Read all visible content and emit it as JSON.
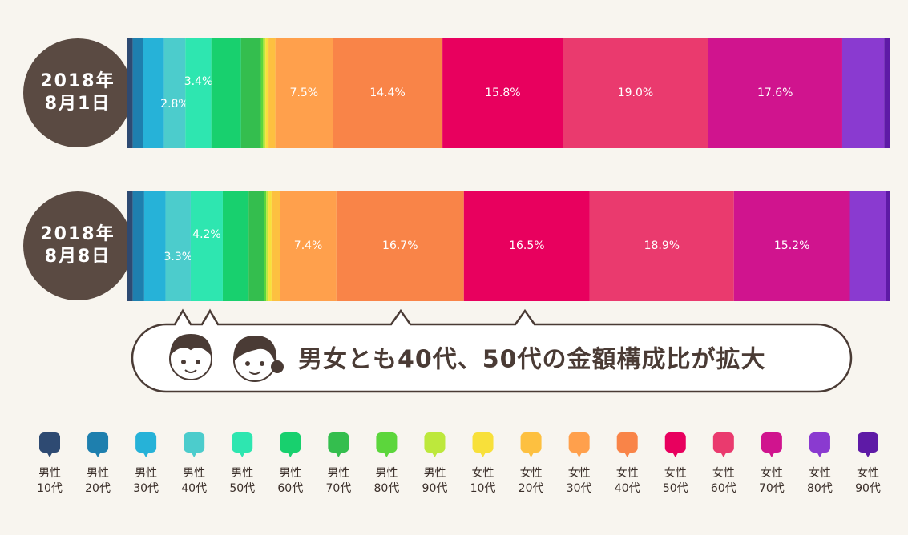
{
  "chart_data": {
    "type": "stacked_barh",
    "categories": [
      [
        "2018年",
        "8月1日"
      ],
      [
        "2018年",
        "8月8日"
      ]
    ],
    "xlim": [
      0,
      100
    ],
    "annotation": "男女とも40代、50代の金額構成比が拡大",
    "series": [
      {
        "name": [
          "男性",
          "10代"
        ],
        "color": "#2e4a72",
        "values": [
          0.8,
          0.8
        ]
      },
      {
        "name": [
          "男性",
          "20代"
        ],
        "color": "#1e7fae",
        "values": [
          1.4,
          1.5
        ]
      },
      {
        "name": [
          "男性",
          "30代"
        ],
        "color": "#26b2d8",
        "values": [
          2.7,
          2.8
        ]
      },
      {
        "name": [
          "男性",
          "40代"
        ],
        "color": "#4ccccc",
        "values": [
          2.8,
          3.3
        ],
        "value_labels": [
          "2.8%",
          "3.3%"
        ]
      },
      {
        "name": [
          "男性",
          "50代"
        ],
        "color": "#2ee6b0",
        "values": [
          3.4,
          4.2
        ],
        "value_labels": [
          "3.4%",
          "4.2%"
        ]
      },
      {
        "name": [
          "男性",
          "60代"
        ],
        "color": "#18d06e",
        "values": [
          3.9,
          3.4
        ]
      },
      {
        "name": [
          "男性",
          "70代"
        ],
        "color": "#34be4e",
        "values": [
          2.6,
          2.0
        ]
      },
      {
        "name": [
          "男性",
          "80代"
        ],
        "color": "#5cd63c",
        "values": [
          0.3,
          0.3
        ]
      },
      {
        "name": [
          "男性",
          "90代"
        ],
        "color": "#bde83c",
        "values": [
          0.3,
          0.3
        ]
      },
      {
        "name": [
          "女性",
          "10代"
        ],
        "color": "#f8e03a",
        "values": [
          0.4,
          0.4
        ]
      },
      {
        "name": [
          "女性",
          "20代"
        ],
        "color": "#fdc040",
        "values": [
          0.9,
          1.1
        ]
      },
      {
        "name": [
          "女性",
          "30代"
        ],
        "color": "#ffa04c",
        "values": [
          7.5,
          7.4
        ],
        "value_labels": [
          "7.5%",
          "7.4%"
        ]
      },
      {
        "name": [
          "女性",
          "40代"
        ],
        "color": "#f98448",
        "values": [
          14.4,
          16.7
        ],
        "value_labels": [
          "14.4%",
          "16.7%"
        ]
      },
      {
        "name": [
          "女性",
          "50代"
        ],
        "color": "#e8005e",
        "values": [
          15.8,
          16.5
        ],
        "value_labels": [
          "15.8%",
          "16.5%"
        ]
      },
      {
        "name": [
          "女性",
          "60代"
        ],
        "color": "#ea3a6e",
        "values": [
          19.0,
          18.9
        ],
        "value_labels": [
          "19.0%",
          "18.9%"
        ]
      },
      {
        "name": [
          "女性",
          "70代"
        ],
        "color": "#d0148e",
        "values": [
          17.6,
          15.2
        ],
        "value_labels": [
          "17.6%",
          "15.2%"
        ]
      },
      {
        "name": [
          "女性",
          "80代"
        ],
        "color": "#8a3ad0",
        "values": [
          5.5,
          4.7
        ]
      },
      {
        "name": [
          "女性",
          "90代"
        ],
        "color": "#5e1aa6",
        "values": [
          0.7,
          0.5
        ]
      }
    ]
  }
}
